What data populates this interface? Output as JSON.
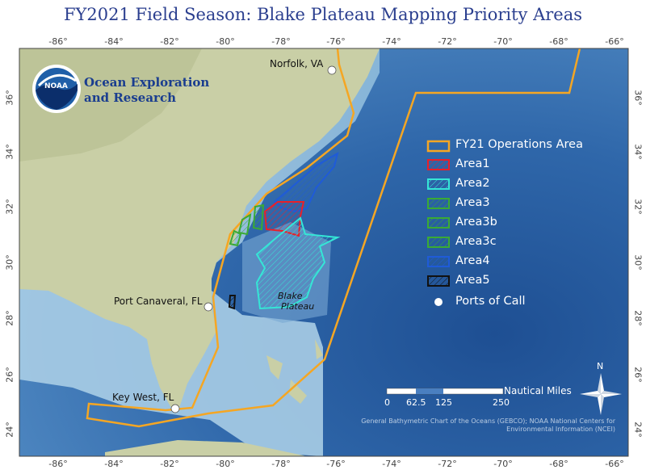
{
  "title": "FY2021 Field Season: Blake Plateau Mapping Priority Areas",
  "organization": {
    "line1": "Ocean Exploration",
    "line2": "and Research",
    "logo_text": "NOAA"
  },
  "longitude_labels": [
    "-86°",
    "-84°",
    "-82°",
    "-80°",
    "-78°",
    "-76°",
    "-74°",
    "-72°",
    "-70°",
    "-68°",
    "-66°"
  ],
  "latitude_labels": [
    "36°",
    "34°",
    "32°",
    "30°",
    "28°",
    "26°",
    "24°"
  ],
  "ports": [
    {
      "name": "Norfolk, VA"
    },
    {
      "name": "Port Canaveral, FL"
    },
    {
      "name": "Key West, FL"
    }
  ],
  "feature_label": {
    "line1": "Blake",
    "line2": "Plateau"
  },
  "legend": [
    {
      "label": "FY21 Operations Area",
      "color": "#f5a623"
    },
    {
      "label": "Area1",
      "color": "#e8202a"
    },
    {
      "label": "Area2",
      "color": "#35e6d6"
    },
    {
      "label": "Area3",
      "color": "#3aaa35"
    },
    {
      "label": "Area3b",
      "color": "#3aaa35"
    },
    {
      "label": "Area3c",
      "color": "#3aaa35"
    },
    {
      "label": "Area4",
      "color": "#1f5bd8"
    },
    {
      "label": "Area5",
      "color": "#111111"
    },
    {
      "label": "Ports of Call",
      "color": "#ffffff"
    }
  ],
  "scale_bar": {
    "ticks": [
      "0",
      "62.5",
      "125",
      "250"
    ],
    "unit": "Nautical Miles"
  },
  "north_arrow": {
    "label": "N"
  },
  "credits": "General Bathymetric Chart of the Oceans (GEBCO); NOAA National Centers for Environmental Information (NCEI)"
}
